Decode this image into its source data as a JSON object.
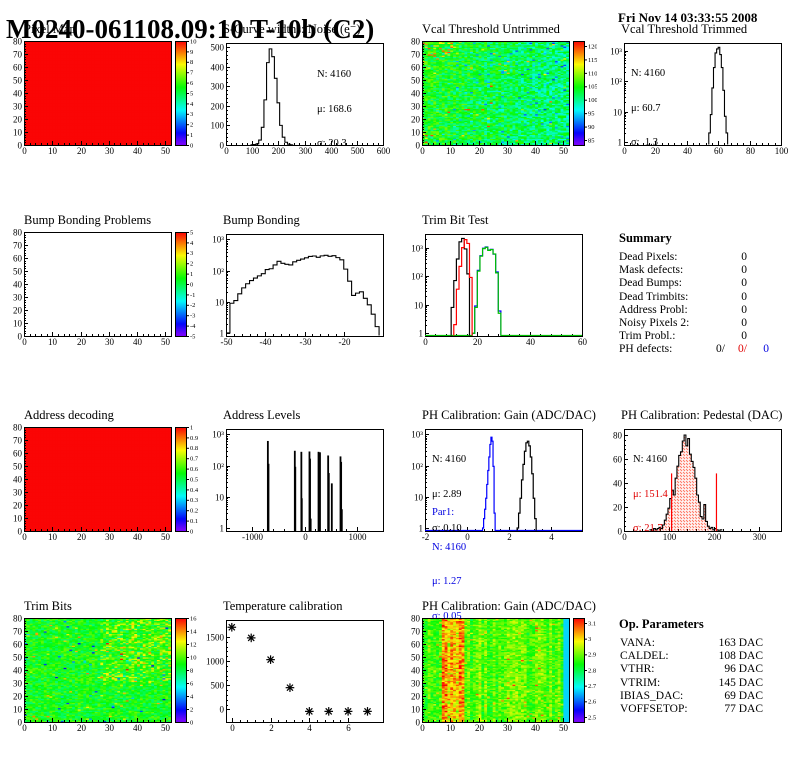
{
  "header": {
    "title": "M0240-061108.09:10 T-10b (C2)",
    "date": "Fri Nov 14 03:33:55 2008"
  },
  "colors": {
    "hist_black": "#000000",
    "hist_red": "#ff0000",
    "hist_blue": "#0000ff",
    "hist_green": "#00c000",
    "map_red": "#f90606"
  },
  "summary": {
    "heading": "Summary",
    "rows": [
      {
        "label": "Dead Pixels:",
        "value": "0"
      },
      {
        "label": "Mask defects:",
        "value": "0"
      },
      {
        "label": "Dead Bumps:",
        "value": "0"
      },
      {
        "label": "Dead Trimbits:",
        "value": "0"
      },
      {
        "label": "Address Probl:",
        "value": "0"
      },
      {
        "label": "Noisy Pixels 2:",
        "value": "0"
      },
      {
        "label": "Trim Probl.:",
        "value": "0"
      }
    ],
    "ph_defects": {
      "label": "PH defects:",
      "values": [
        "0/",
        "0/",
        "0"
      ]
    }
  },
  "op_parameters": {
    "heading": "Op. Parameters",
    "rows": [
      {
        "label": "VANA:",
        "value": "163 DAC"
      },
      {
        "label": "CALDEL:",
        "value": "108 DAC"
      },
      {
        "label": "VTHR:",
        "value": "96 DAC"
      },
      {
        "label": "VTRIM:",
        "value": "145 DAC"
      },
      {
        "label": "IBIAS_DAC:",
        "value": "69 DAC"
      },
      {
        "label": "VOFFSETOP:",
        "value": "77 DAC"
      }
    ]
  },
  "chart_data": [
    {
      "id": "pixel-map",
      "type": "heatmap",
      "title": "Pixel Map",
      "xlim": [
        0,
        52
      ],
      "ylim": [
        0,
        80
      ],
      "x_ticks": [
        0,
        10,
        20,
        30,
        40,
        50
      ],
      "y_ticks": [
        0,
        10,
        20,
        30,
        40,
        50,
        60,
        70,
        80
      ],
      "colorbar_labels": [
        "10",
        "9",
        "8",
        "7",
        "6",
        "5",
        "4",
        "3",
        "2",
        "1",
        "0"
      ],
      "pattern": {
        "kind": "uniform"
      }
    },
    {
      "id": "scurve-noise",
      "type": "hist",
      "title": "S-Curve widths: Noise (e⁻)",
      "xlim": [
        0,
        600
      ],
      "x_ticks": [
        0,
        100,
        200,
        300,
        400,
        500,
        600
      ],
      "ylim": [
        0,
        520
      ],
      "y_ticks": [
        0,
        100,
        200,
        300,
        400,
        500
      ],
      "yscale": "linear",
      "bins": {
        "x0": 95,
        "dx": 10,
        "y": [
          1,
          2,
          6,
          25,
          90,
          230,
          420,
          490,
          450,
          340,
          215,
          100,
          40,
          14,
          4,
          1
        ]
      },
      "stats": [
        "N: 4160",
        "μ: 168.6",
        "σ: 20.3"
      ]
    },
    {
      "id": "vcal-threshold-untrimmed",
      "type": "heatmap",
      "title": "Vcal Threshold Untrimmed",
      "xlim": [
        0,
        52
      ],
      "ylim": [
        0,
        80
      ],
      "x_ticks": [
        0,
        10,
        20,
        30,
        40,
        50
      ],
      "y_ticks": [
        0,
        10,
        20,
        30,
        40,
        50,
        60,
        70,
        80
      ],
      "colorbar_labels": [
        "120",
        "115",
        "110",
        "105",
        "100",
        "95",
        "90",
        "85"
      ],
      "colorbar_inset": true,
      "pattern": {
        "kind": "threshold-noise",
        "seed": 11
      }
    },
    {
      "id": "vcal-threshold-trimmed",
      "type": "hist",
      "title": "Vcal Threshold Trimmed",
      "xlim": [
        0,
        100
      ],
      "x_ticks": [
        0,
        20,
        40,
        60,
        80,
        100
      ],
      "yscale": "log",
      "ylog_range": [
        0.8,
        1800
      ],
      "bins": {
        "x0": 54,
        "dx": 1,
        "y": [
          2,
          8,
          60,
          280,
          850,
          1150,
          1300,
          750,
          280,
          50,
          7,
          2
        ]
      },
      "stats": [
        "N: 4160",
        "μ: 60.7",
        "σ:  1.3"
      ]
    },
    {
      "id": "bump-bonding-problems",
      "type": "heatmap",
      "title": "Bump Bonding Problems",
      "xlim": [
        0,
        52
      ],
      "ylim": [
        0,
        80
      ],
      "x_ticks": [
        0,
        10,
        20,
        30,
        40,
        50
      ],
      "y_ticks": [
        0,
        10,
        20,
        30,
        40,
        50,
        60,
        70,
        80
      ],
      "colorbar_labels": [
        "5",
        "4",
        "3",
        "2",
        "1",
        "0",
        "-1",
        "-2",
        "-3",
        "-4",
        "-5"
      ],
      "pattern": {
        "kind": "blank"
      }
    },
    {
      "id": "bump-bonding",
      "type": "hist",
      "title": "Bump Bonding",
      "xlim": [
        -50,
        -10
      ],
      "x_ticks": [
        -50,
        -40,
        -30,
        -20
      ],
      "yscale": "log",
      "ylog_range": [
        0.8,
        1500
      ],
      "bins": {
        "x0": -50,
        "dx": 1,
        "y": [
          1,
          9,
          11,
          18,
          28,
          38,
          48,
          58,
          68,
          80,
          108,
          115,
          152,
          200,
          172,
          160,
          152,
          192,
          215,
          235,
          258,
          285,
          295,
          268,
          298,
          310,
          288,
          302,
          262,
          222,
          112,
          46,
          16,
          19,
          21,
          13,
          8,
          4,
          1.6
        ]
      }
    },
    {
      "id": "trim-bit-test",
      "type": "multi-hist",
      "title": "Trim Bit Test",
      "xlim": [
        0,
        60
      ],
      "x_ticks": [
        0,
        20,
        40,
        60
      ],
      "yscale": "log",
      "ylog_range": [
        0.8,
        3000
      ],
      "series": [
        {
          "name": "trim-bit-14",
          "color": "#0000ff",
          "x0": 18,
          "dx": 1,
          "y": [
            1,
            9,
            160,
            520,
            950,
            1050,
            820,
            870,
            590,
            140,
            6
          ]
        },
        {
          "name": "trim-bit-13",
          "color": "#00c000",
          "baseline": true,
          "x0": 18,
          "dx": 1,
          "y": [
            1,
            8,
            150,
            500,
            920,
            1020,
            800,
            850,
            600,
            130,
            5
          ]
        },
        {
          "name": "trim-bit-11",
          "color": "#000000",
          "x0": 10,
          "dx": 1,
          "y": [
            8,
            70,
            400,
            1600,
            2100,
            900,
            120
          ]
        },
        {
          "name": "trim-bit-7",
          "color": "#ff0000",
          "x0": 11,
          "dx": 1,
          "y": [
            2,
            35,
            220,
            1000,
            1900,
            1400,
            90
          ]
        }
      ]
    },
    {
      "id": "address-decoding",
      "type": "heatmap",
      "title": "Address decoding",
      "xlim": [
        0,
        52
      ],
      "ylim": [
        0,
        80
      ],
      "x_ticks": [
        0,
        10,
        20,
        30,
        40,
        50
      ],
      "y_ticks": [
        0,
        10,
        20,
        30,
        40,
        50,
        60,
        70,
        80
      ],
      "colorbar_labels": [
        "1",
        "0.9",
        "0.8",
        "0.7",
        "0.6",
        "0.5",
        "0.4",
        "0.3",
        "0.2",
        "0.1",
        "0"
      ],
      "pattern": {
        "kind": "uniform"
      }
    },
    {
      "id": "address-levels",
      "type": "spikes",
      "title": "Address Levels",
      "xlim": [
        -1500,
        1500
      ],
      "x_ticks": [
        -1000,
        0,
        1000
      ],
      "yscale": "log",
      "ylog_range": [
        0.8,
        1500
      ],
      "spikes": [
        [
          -700,
          620
        ],
        [
          -688,
          115
        ],
        [
          -185,
          300
        ],
        [
          -176,
          92
        ],
        [
          -60,
          278
        ],
        [
          -52,
          9
        ],
        [
          95,
          285
        ],
        [
          106,
          168
        ],
        [
          118,
          2
        ],
        [
          268,
          278
        ],
        [
          296,
          268
        ],
        [
          452,
          212
        ],
        [
          464,
          58
        ],
        [
          522,
          27
        ],
        [
          688,
          198
        ],
        [
          700,
          132
        ],
        [
          713,
          4
        ]
      ]
    },
    {
      "id": "ph-calibration-gain-1d",
      "type": "multi-hist",
      "title": "PH Calibration: Gain (ADC/DAC)",
      "xlim": [
        -2,
        5.5
      ],
      "x_ticks": [
        -2,
        0,
        2,
        4
      ],
      "yscale": "log",
      "ylog_range": [
        0.8,
        1500
      ],
      "series": [
        {
          "name": "par1-gain",
          "color": "#0000ff",
          "baseline": true,
          "x0": 0.75,
          "dx": 0.05,
          "y": [
            1,
            2,
            4,
            9,
            25,
            70,
            190,
            480,
            820,
            610,
            95,
            3
          ]
        },
        {
          "name": "par0-gain",
          "color": "#000000",
          "x0": 2.4,
          "dx": 0.07,
          "y": [
            1,
            3,
            9,
            35,
            110,
            290,
            540,
            610,
            430,
            190,
            55,
            9,
            2
          ]
        }
      ],
      "stats": [
        "N: 4160",
        "μ: 2.89",
        "σ: 0.10"
      ],
      "stats2": [
        "Par1:",
        "N: 4160",
        "μ: 1.27",
        "σ: 0.05"
      ]
    },
    {
      "id": "ph-calibration-pedestal",
      "type": "hist",
      "title": "PH Calibration: Pedestal (DAC)",
      "xlim": [
        0,
        350
      ],
      "x_ticks": [
        0,
        100,
        200,
        300
      ],
      "ylim": [
        0,
        85
      ],
      "y_ticks": [
        0,
        20,
        40,
        60,
        80
      ],
      "yscale": "linear",
      "fill": "red-dots",
      "bins": {
        "x0": 58,
        "dx": 4,
        "y": [
          1,
          0,
          2,
          1,
          2,
          3,
          2,
          5,
          9,
          14,
          19,
          27,
          34,
          30,
          44,
          54,
          63,
          66,
          75,
          80,
          71,
          77,
          64,
          58,
          53,
          44,
          30,
          24,
          12,
          10,
          22,
          8,
          4,
          2,
          3,
          1,
          2,
          1,
          0,
          1
        ]
      },
      "red_lines": [
        {
          "x": 105,
          "h": 48
        },
        {
          "x": 205,
          "h": 48
        }
      ],
      "stats_n": "N: 4160",
      "stats_mu": "μ: 151.4",
      "stats_sigma": "σ: 21.7"
    },
    {
      "id": "trim-bits",
      "type": "heatmap",
      "title": "Trim Bits",
      "xlim": [
        0,
        52
      ],
      "ylim": [
        0,
        80
      ],
      "x_ticks": [
        0,
        10,
        20,
        30,
        40,
        50
      ],
      "y_ticks": [
        0,
        10,
        20,
        30,
        40,
        50,
        60,
        70,
        80
      ],
      "colorbar_labels": [
        "16",
        "14",
        "12",
        "10",
        "8",
        "6",
        "4",
        "2",
        "0"
      ],
      "pattern": {
        "kind": "trimbits-noise",
        "seed": 7
      }
    },
    {
      "id": "temperature-calibration",
      "type": "scatter",
      "title": "Temperature calibration",
      "xlim": [
        -0.3,
        7.8
      ],
      "x_ticks": [
        0,
        2,
        4,
        6
      ],
      "ylim": [
        -260,
        1850
      ],
      "y_ticks": [
        0,
        500,
        1000,
        1500
      ],
      "yscale": "linear",
      "points": [
        [
          0,
          1700
        ],
        [
          1,
          1480
        ],
        [
          2,
          1030
        ],
        [
          3,
          450
        ],
        [
          4,
          -40
        ],
        [
          5,
          -40
        ],
        [
          6,
          -40
        ],
        [
          7,
          -40
        ]
      ],
      "marker": "asterisk"
    },
    {
      "id": "ph-calibration-gain-2d",
      "type": "heatmap",
      "title": "PH Calibration: Gain (ADC/DAC)",
      "xlim": [
        0,
        52
      ],
      "ylim": [
        0,
        80
      ],
      "x_ticks": [
        0,
        10,
        20,
        30,
        40,
        50
      ],
      "y_ticks": [
        0,
        10,
        20,
        30,
        40,
        50,
        60,
        70,
        80
      ],
      "colorbar_labels": [
        "3.1",
        "3",
        "2.9",
        "2.8",
        "2.7",
        "2.6",
        "2.5"
      ],
      "colorbar_inset": true,
      "pattern": {
        "kind": "gain-noise",
        "seed": 23
      }
    }
  ]
}
